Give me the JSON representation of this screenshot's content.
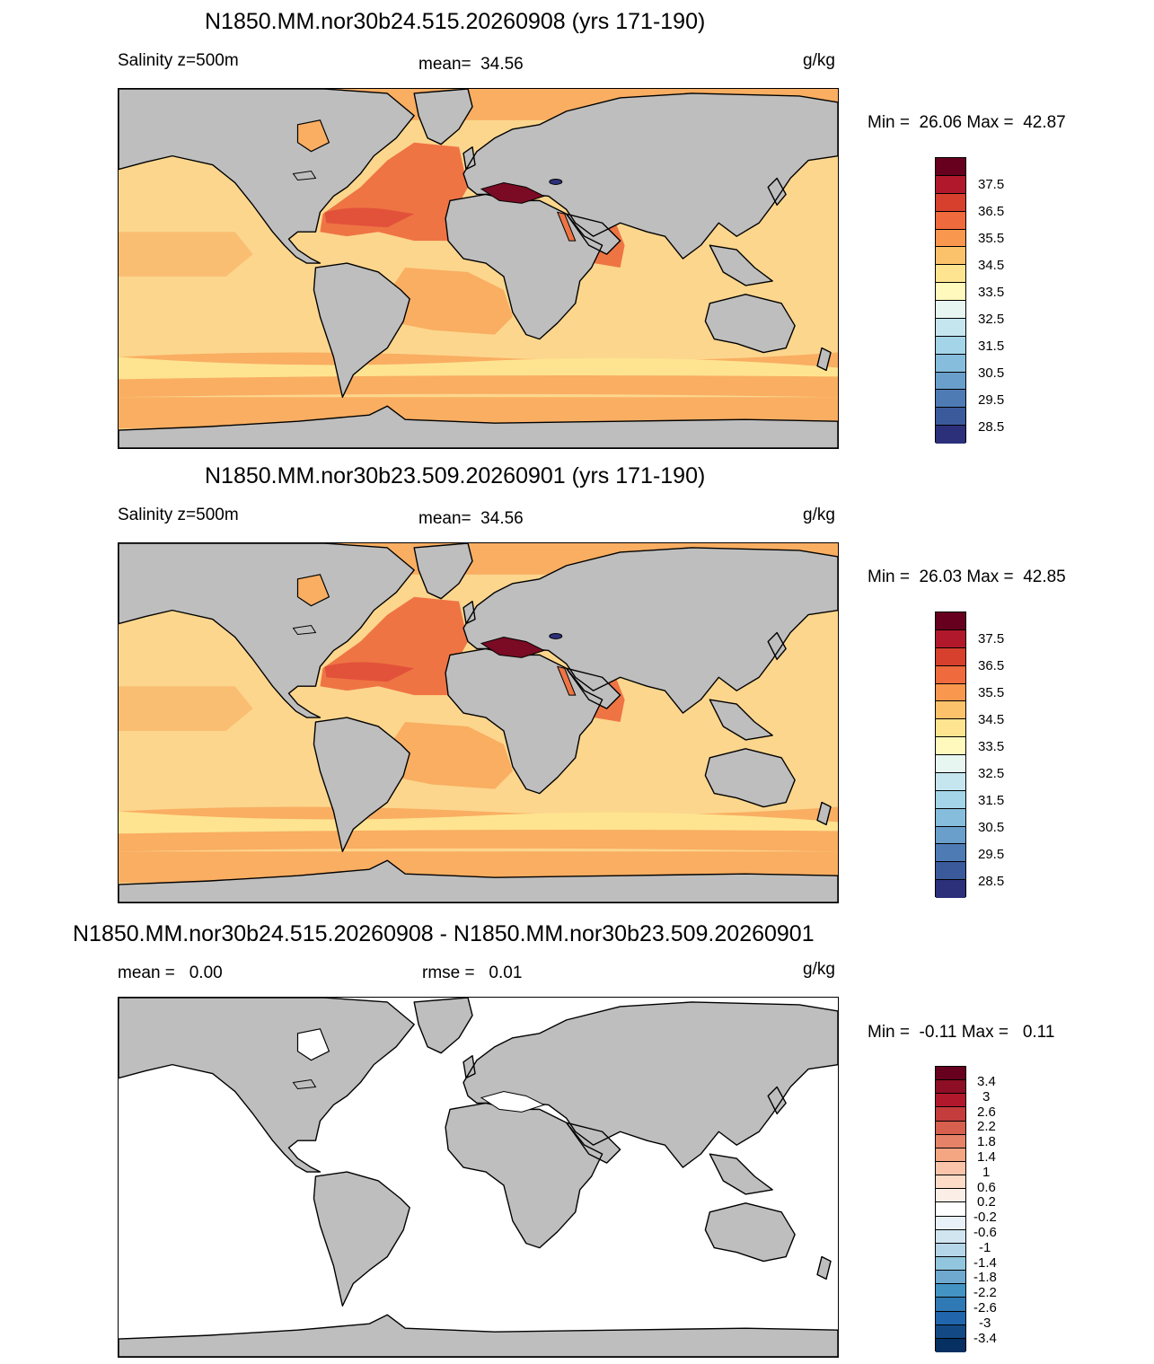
{
  "panels": [
    {
      "title": "N1850.MM.nor30b24.515.20260908 (yrs 171-190)",
      "left_label": "Salinity z=500m",
      "center_label": "mean=  34.56",
      "units": "g/kg",
      "minmax": "Min =  26.06 Max =  42.87",
      "field": "salinity"
    },
    {
      "title": "N1850.MM.nor30b23.509.20260901 (yrs 171-190)",
      "left_label": "Salinity z=500m",
      "center_label": "mean=  34.56",
      "units": "g/kg",
      "minmax": "Min =  26.03 Max =  42.85",
      "field": "salinity"
    },
    {
      "title": "N1850.MM.nor30b24.515.20260908 - N1850.MM.nor30b23.509.20260901",
      "left_label": "mean =   0.00",
      "center_label": "rmse =   0.01",
      "units": "g/kg",
      "minmax": "Min =  -0.11 Max =   0.11",
      "field": "difference"
    }
  ],
  "colorbars": {
    "salinity": {
      "labels": [
        "37.5",
        "36.5",
        "35.5",
        "34.5",
        "33.5",
        "32.5",
        "31.5",
        "30.5",
        "29.5",
        "28.5"
      ],
      "colors": [
        "#67001f",
        "#b2182b",
        "#d6402c",
        "#ef6a3c",
        "#f9974e",
        "#fcc26b",
        "#fee491",
        "#fff9bd",
        "#e8f6f2",
        "#c5e6ef",
        "#a4d4e8",
        "#86bddc",
        "#6a9fcb",
        "#4f7bb5",
        "#3a5a9c",
        "#2c307a"
      ]
    },
    "difference": {
      "labels": [
        "3.4",
        "3",
        "2.6",
        "2.2",
        "1.8",
        "1.4",
        "1",
        "0.6",
        "0.2",
        "-0.2",
        "-0.6",
        "-1",
        "-1.4",
        "-1.8",
        "-2.2",
        "-2.6",
        "-3",
        "-3.4"
      ],
      "colors": [
        "#67001f",
        "#8e0e25",
        "#b2182b",
        "#c43c3c",
        "#d6604d",
        "#e58267",
        "#f4a582",
        "#f9c4a9",
        "#fddbc7",
        "#fbeee6",
        "#ffffff",
        "#e8f1f7",
        "#d1e5f0",
        "#b5d5e8",
        "#92c5de",
        "#6fa9cf",
        "#4393c3",
        "#2f79b5",
        "#2166ac",
        "#134a86",
        "#053061"
      ]
    }
  },
  "map_colors": {
    "land": "#bebebe",
    "coast": "#000000",
    "ocean_base": "#fcd68d",
    "ocean_high": "#f9ae62",
    "atlantic": "#ef7444",
    "atlantic_core": "#e2523a",
    "med": "#7b0a24",
    "diff_ocean": "#ffffff"
  }
}
